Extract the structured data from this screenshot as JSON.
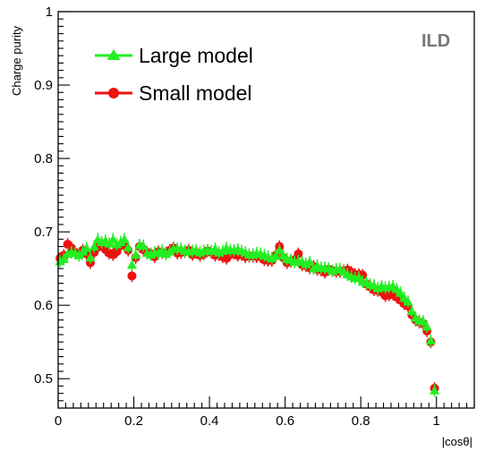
{
  "chart_data": {
    "type": "scatter",
    "title": "",
    "xlabel": "|cosθ|",
    "ylabel": "Charge purity",
    "xlim": [
      0,
      1.1
    ],
    "ylim": [
      0.46,
      1.0
    ],
    "x_ticks": [
      "0",
      "0.2",
      "0.4",
      "0.6",
      "0.8",
      "1"
    ],
    "y_ticks": [
      "0.5",
      "0.6",
      "0.7",
      "0.8",
      "0.9",
      "1"
    ],
    "annotation": "ILD",
    "legend": {
      "position": "top-left",
      "entries": [
        "Large model",
        "Small model"
      ]
    },
    "grid": false,
    "colors": {
      "large": "#22ee22",
      "small": "#ee1111"
    },
    "series": [
      {
        "name": "Small model",
        "marker": "circle",
        "color": "#ee1111",
        "x": [
          0.005,
          0.015,
          0.025,
          0.035,
          0.045,
          0.055,
          0.065,
          0.075,
          0.085,
          0.095,
          0.105,
          0.115,
          0.125,
          0.135,
          0.145,
          0.155,
          0.165,
          0.175,
          0.185,
          0.195,
          0.205,
          0.215,
          0.225,
          0.235,
          0.245,
          0.255,
          0.265,
          0.275,
          0.285,
          0.295,
          0.305,
          0.315,
          0.325,
          0.335,
          0.345,
          0.355,
          0.365,
          0.375,
          0.385,
          0.395,
          0.405,
          0.415,
          0.425,
          0.435,
          0.445,
          0.455,
          0.465,
          0.475,
          0.485,
          0.495,
          0.505,
          0.515,
          0.525,
          0.535,
          0.545,
          0.555,
          0.565,
          0.575,
          0.585,
          0.595,
          0.605,
          0.615,
          0.625,
          0.635,
          0.645,
          0.655,
          0.665,
          0.675,
          0.685,
          0.695,
          0.705,
          0.715,
          0.725,
          0.735,
          0.745,
          0.755,
          0.765,
          0.775,
          0.785,
          0.795,
          0.805,
          0.815,
          0.825,
          0.835,
          0.845,
          0.855,
          0.865,
          0.875,
          0.885,
          0.895,
          0.905,
          0.915,
          0.925,
          0.935,
          0.945,
          0.955,
          0.965,
          0.975,
          0.985,
          0.995
        ],
        "y": [
          0.664,
          0.668,
          0.683,
          0.678,
          0.672,
          0.669,
          0.675,
          0.67,
          0.658,
          0.672,
          0.679,
          0.684,
          0.676,
          0.671,
          0.669,
          0.673,
          0.681,
          0.684,
          0.675,
          0.64,
          0.665,
          0.68,
          0.676,
          0.672,
          0.67,
          0.666,
          0.673,
          0.672,
          0.671,
          0.675,
          0.678,
          0.671,
          0.672,
          0.673,
          0.675,
          0.669,
          0.672,
          0.668,
          0.67,
          0.674,
          0.672,
          0.668,
          0.669,
          0.666,
          0.664,
          0.669,
          0.671,
          0.668,
          0.669,
          0.666,
          0.667,
          0.667,
          0.666,
          0.666,
          0.662,
          0.661,
          0.661,
          0.668,
          0.68,
          0.665,
          0.658,
          0.66,
          0.662,
          0.67,
          0.655,
          0.654,
          0.651,
          0.653,
          0.649,
          0.648,
          0.645,
          0.649,
          0.647,
          0.646,
          0.646,
          0.647,
          0.648,
          0.645,
          0.642,
          0.642,
          0.641,
          0.629,
          0.625,
          0.621,
          0.62,
          0.618,
          0.613,
          0.614,
          0.615,
          0.611,
          0.607,
          0.602,
          0.599,
          0.587,
          0.58,
          0.577,
          0.575,
          0.565,
          0.55,
          0.487
        ]
      },
      {
        "name": "Large model",
        "marker": "triangle",
        "color": "#22ee22",
        "x": [
          0.005,
          0.015,
          0.025,
          0.035,
          0.045,
          0.055,
          0.065,
          0.075,
          0.085,
          0.095,
          0.105,
          0.115,
          0.125,
          0.135,
          0.145,
          0.155,
          0.165,
          0.175,
          0.185,
          0.195,
          0.205,
          0.215,
          0.225,
          0.235,
          0.245,
          0.255,
          0.265,
          0.275,
          0.285,
          0.295,
          0.305,
          0.315,
          0.325,
          0.335,
          0.345,
          0.355,
          0.365,
          0.375,
          0.385,
          0.395,
          0.405,
          0.415,
          0.425,
          0.435,
          0.445,
          0.455,
          0.465,
          0.475,
          0.485,
          0.495,
          0.505,
          0.515,
          0.525,
          0.535,
          0.545,
          0.555,
          0.565,
          0.575,
          0.585,
          0.595,
          0.605,
          0.615,
          0.625,
          0.635,
          0.645,
          0.655,
          0.665,
          0.675,
          0.685,
          0.695,
          0.705,
          0.715,
          0.725,
          0.735,
          0.745,
          0.755,
          0.765,
          0.775,
          0.785,
          0.795,
          0.805,
          0.815,
          0.825,
          0.835,
          0.845,
          0.855,
          0.865,
          0.875,
          0.885,
          0.895,
          0.905,
          0.915,
          0.925,
          0.935,
          0.945,
          0.955,
          0.965,
          0.975,
          0.985,
          0.995
        ],
        "y": [
          0.66,
          0.663,
          0.67,
          0.672,
          0.671,
          0.668,
          0.673,
          0.678,
          0.665,
          0.68,
          0.69,
          0.686,
          0.688,
          0.684,
          0.69,
          0.683,
          0.686,
          0.69,
          0.679,
          0.655,
          0.669,
          0.682,
          0.681,
          0.671,
          0.669,
          0.672,
          0.671,
          0.675,
          0.67,
          0.673,
          0.677,
          0.677,
          0.677,
          0.674,
          0.673,
          0.674,
          0.675,
          0.672,
          0.674,
          0.675,
          0.674,
          0.677,
          0.672,
          0.674,
          0.678,
          0.675,
          0.675,
          0.676,
          0.674,
          0.672,
          0.669,
          0.669,
          0.671,
          0.67,
          0.668,
          0.666,
          0.664,
          0.667,
          0.675,
          0.668,
          0.663,
          0.662,
          0.659,
          0.66,
          0.659,
          0.656,
          0.659,
          0.65,
          0.654,
          0.651,
          0.651,
          0.65,
          0.647,
          0.649,
          0.649,
          0.646,
          0.642,
          0.639,
          0.637,
          0.638,
          0.632,
          0.631,
          0.628,
          0.627,
          0.623,
          0.626,
          0.624,
          0.625,
          0.626,
          0.622,
          0.617,
          0.61,
          0.605,
          0.592,
          0.583,
          0.579,
          0.578,
          0.571,
          0.552,
          0.484
        ]
      }
    ]
  }
}
